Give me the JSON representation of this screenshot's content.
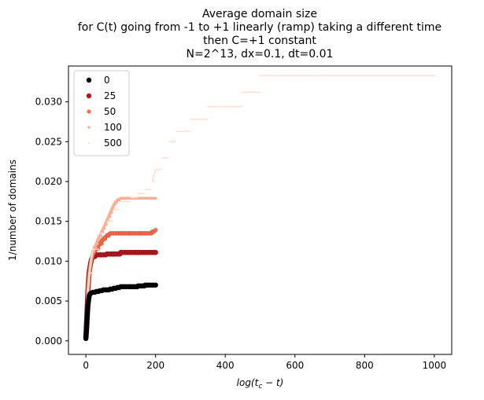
{
  "chart_data": {
    "type": "scatter",
    "title_lines": [
      "Average domain size",
      "for C(t) going from -1 to +1 linearly (ramp) taking a different time",
      "then C=+1 constant",
      "N=2^13, dx=0.1, dt=0.01"
    ],
    "xlabel": "log(t_c − t)",
    "xlabel_parts": {
      "base": "log(",
      "var": "t",
      "sub": "c",
      "rest": " − t)"
    },
    "ylabel": "1/number of domains",
    "xlim": [
      -50,
      1050
    ],
    "ylim": [
      -0.0017,
      0.0345
    ],
    "x_ticks": [
      0,
      200,
      400,
      600,
      800,
      1000
    ],
    "y_ticks": [
      0.0,
      0.005,
      0.01,
      0.015,
      0.02,
      0.025,
      0.03
    ],
    "y_tick_labels": [
      "0.000",
      "0.005",
      "0.010",
      "0.015",
      "0.020",
      "0.025",
      "0.030"
    ],
    "legend_position": "upper-left",
    "grid": false,
    "series": [
      {
        "name": "25",
        "color": "#b2171c",
        "marker": "large",
        "x_end": 200,
        "x": [
          0,
          1,
          2,
          3,
          4,
          5,
          6,
          8,
          10,
          13,
          16,
          20,
          30,
          45,
          60,
          80,
          100,
          150,
          200
        ],
        "y": [
          0.0005,
          0.0015,
          0.0025,
          0.0035,
          0.0045,
          0.0055,
          0.0065,
          0.0078,
          0.0088,
          0.0096,
          0.0102,
          0.0106,
          0.0108,
          0.0108,
          0.0109,
          0.0109,
          0.0111,
          0.0111,
          0.0111
        ]
      },
      {
        "name": "50",
        "color": "#fb6a4a",
        "marker": "medium",
        "x_end": 200,
        "x": [
          0,
          1,
          2,
          3,
          4,
          5,
          6,
          8,
          10,
          13,
          16,
          20,
          25,
          30,
          40,
          50,
          60,
          70,
          80,
          100,
          130,
          160,
          190,
          200
        ],
        "y": [
          0.0005,
          0.0015,
          0.0025,
          0.0035,
          0.0045,
          0.0055,
          0.0065,
          0.0075,
          0.0085,
          0.0095,
          0.0102,
          0.0108,
          0.0112,
          0.0116,
          0.0122,
          0.0128,
          0.0132,
          0.0135,
          0.0135,
          0.0135,
          0.0135,
          0.0135,
          0.0137,
          0.0139
        ]
      },
      {
        "name": "100",
        "color": "#fcae91",
        "marker": "small",
        "x_end": 200,
        "x": [
          0,
          1,
          2,
          3,
          4,
          5,
          6,
          8,
          10,
          13,
          16,
          20,
          25,
          30,
          35,
          40,
          45,
          50,
          55,
          60,
          65,
          70,
          75,
          80,
          85,
          90,
          100,
          120,
          150,
          180,
          200
        ],
        "y": [
          0.0005,
          0.0015,
          0.0025,
          0.0035,
          0.0045,
          0.0055,
          0.0065,
          0.0075,
          0.0085,
          0.0095,
          0.0105,
          0.0113,
          0.0118,
          0.0122,
          0.0128,
          0.0132,
          0.0137,
          0.0141,
          0.0146,
          0.0151,
          0.0156,
          0.0161,
          0.0166,
          0.0171,
          0.0174,
          0.0177,
          0.0179,
          0.0179,
          0.0179,
          0.0179,
          0.0179
        ]
      },
      {
        "name": "500",
        "color": "#fee0d2",
        "marker": "tiny",
        "x_end": 1000,
        "x": [
          0,
          2,
          5,
          10,
          20,
          40,
          60,
          80,
          100,
          130,
          150,
          170,
          190,
          200,
          220,
          240,
          260,
          300,
          350,
          420,
          450,
          500,
          700,
          1000
        ],
        "y": [
          0.0005,
          0.0025,
          0.0055,
          0.0085,
          0.0115,
          0.0135,
          0.015,
          0.0165,
          0.0175,
          0.018,
          0.0185,
          0.019,
          0.02,
          0.0215,
          0.023,
          0.025,
          0.0263,
          0.0278,
          0.0294,
          0.0294,
          0.0312,
          0.0333,
          0.0333,
          0.0333
        ]
      },
      {
        "name": "0",
        "color": "#000000",
        "marker": "large",
        "x_end": 200,
        "x": [
          0,
          1,
          2,
          3,
          4,
          5,
          6,
          8,
          10,
          12,
          15,
          20,
          30,
          40,
          50,
          60,
          70,
          80,
          90,
          100,
          110,
          130,
          150,
          170,
          200
        ],
        "y": [
          0.0003,
          0.0009,
          0.0015,
          0.0022,
          0.003,
          0.0038,
          0.0045,
          0.0052,
          0.0057,
          0.0059,
          0.006,
          0.0061,
          0.0062,
          0.0063,
          0.0064,
          0.0064,
          0.0065,
          0.0066,
          0.0067,
          0.0068,
          0.0068,
          0.0068,
          0.0069,
          0.007,
          0.007
        ]
      }
    ],
    "legend_order": [
      "0",
      "25",
      "50",
      "100",
      "500"
    ]
  }
}
